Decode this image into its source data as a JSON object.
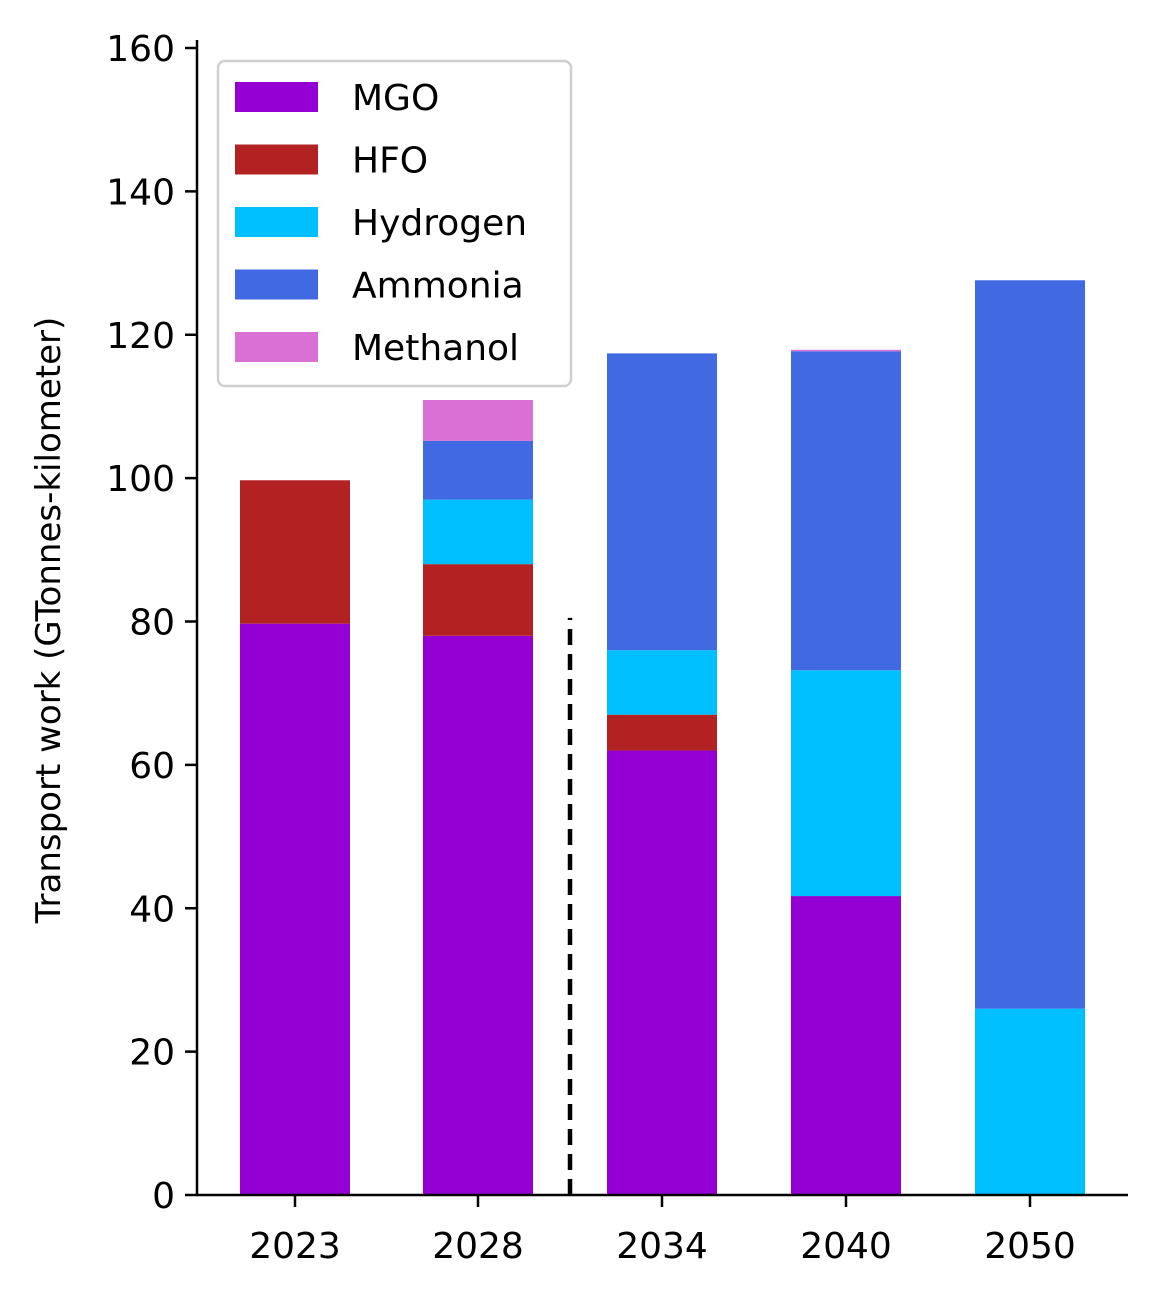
{
  "chart_data": {
    "type": "bar",
    "stacked": true,
    "categories": [
      "2023",
      "2028",
      "2034",
      "2040",
      "2050"
    ],
    "ylabel": "Transport work (GTonnes-kilometer)",
    "xlabel": "",
    "ylim": [
      0,
      160
    ],
    "yticks": [
      "0",
      "20",
      "40",
      "60",
      "80",
      "100",
      "120",
      "140",
      "160"
    ],
    "grid": false,
    "legend_position": "top-left",
    "divider": {
      "style": "dashed",
      "between": [
        "2028",
        "2034"
      ],
      "y_top": 80.5
    },
    "series": [
      {
        "name": "MGO",
        "color": "#9400D3",
        "values": [
          79.7,
          78.0,
          62.0,
          41.7,
          0
        ]
      },
      {
        "name": "HFO",
        "color": "#B22222",
        "values": [
          20.0,
          10.0,
          5.0,
          0,
          0
        ]
      },
      {
        "name": "Hydrogen",
        "color": "#00BFFF",
        "values": [
          0,
          9.0,
          9.0,
          31.5,
          26.0
        ]
      },
      {
        "name": "Ammonia",
        "color": "#4169E1",
        "values": [
          0,
          8.2,
          41.4,
          44.5,
          101.6
        ]
      },
      {
        "name": "Methanol",
        "color": "#DA70D6",
        "values": [
          0,
          5.7,
          0,
          0.2,
          0
        ]
      }
    ]
  }
}
